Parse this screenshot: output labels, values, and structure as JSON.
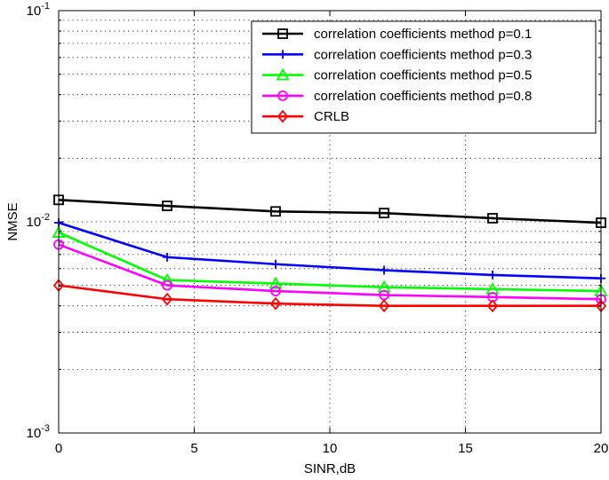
{
  "chart_data": {
    "type": "line",
    "title": "",
    "xlabel": "SINR,dB",
    "ylabel": "NMSE",
    "xlim": [
      0,
      20
    ],
    "ylim": [
      0.001,
      0.1
    ],
    "yscale": "log",
    "grid": true,
    "legend_position": "top-right",
    "x": [
      0,
      4,
      8,
      12,
      16,
      20
    ],
    "x_ticks": [
      "0",
      "5",
      "10",
      "15",
      "20"
    ],
    "x_tick_values": [
      0,
      5,
      10,
      15,
      20
    ],
    "y_ticks": [
      {
        "base": "10",
        "exp": "-3",
        "value": 0.001
      },
      {
        "base": "10",
        "exp": "-2",
        "value": 0.01
      },
      {
        "base": "10",
        "exp": "-1",
        "value": 0.1
      }
    ],
    "series": [
      {
        "name": "correlation coefficients method p=0.1",
        "color": "#000000",
        "marker": "square",
        "values": [
          0.0127,
          0.0119,
          0.0112,
          0.011,
          0.0104,
          0.0099
        ]
      },
      {
        "name": "correlation coefficients method p=0.3",
        "color": "#0000ff",
        "marker": "plus",
        "values": [
          0.0099,
          0.0068,
          0.0063,
          0.0059,
          0.0056,
          0.0054
        ]
      },
      {
        "name": "correlation coefficients method p=0.5",
        "color": "#00ff00",
        "marker": "triangle",
        "values": [
          0.0089,
          0.0053,
          0.0051,
          0.0049,
          0.0048,
          0.0047
        ]
      },
      {
        "name": "correlation coefficients method p=0.8",
        "color": "#ff00ff",
        "marker": "circle",
        "values": [
          0.0078,
          0.005,
          0.0047,
          0.0045,
          0.0044,
          0.0043
        ]
      },
      {
        "name": "CRLB",
        "color": "#ff0000",
        "marker": "diamond",
        "values": [
          0.005,
          0.0043,
          0.0041,
          0.004,
          0.004,
          0.004
        ]
      }
    ]
  }
}
